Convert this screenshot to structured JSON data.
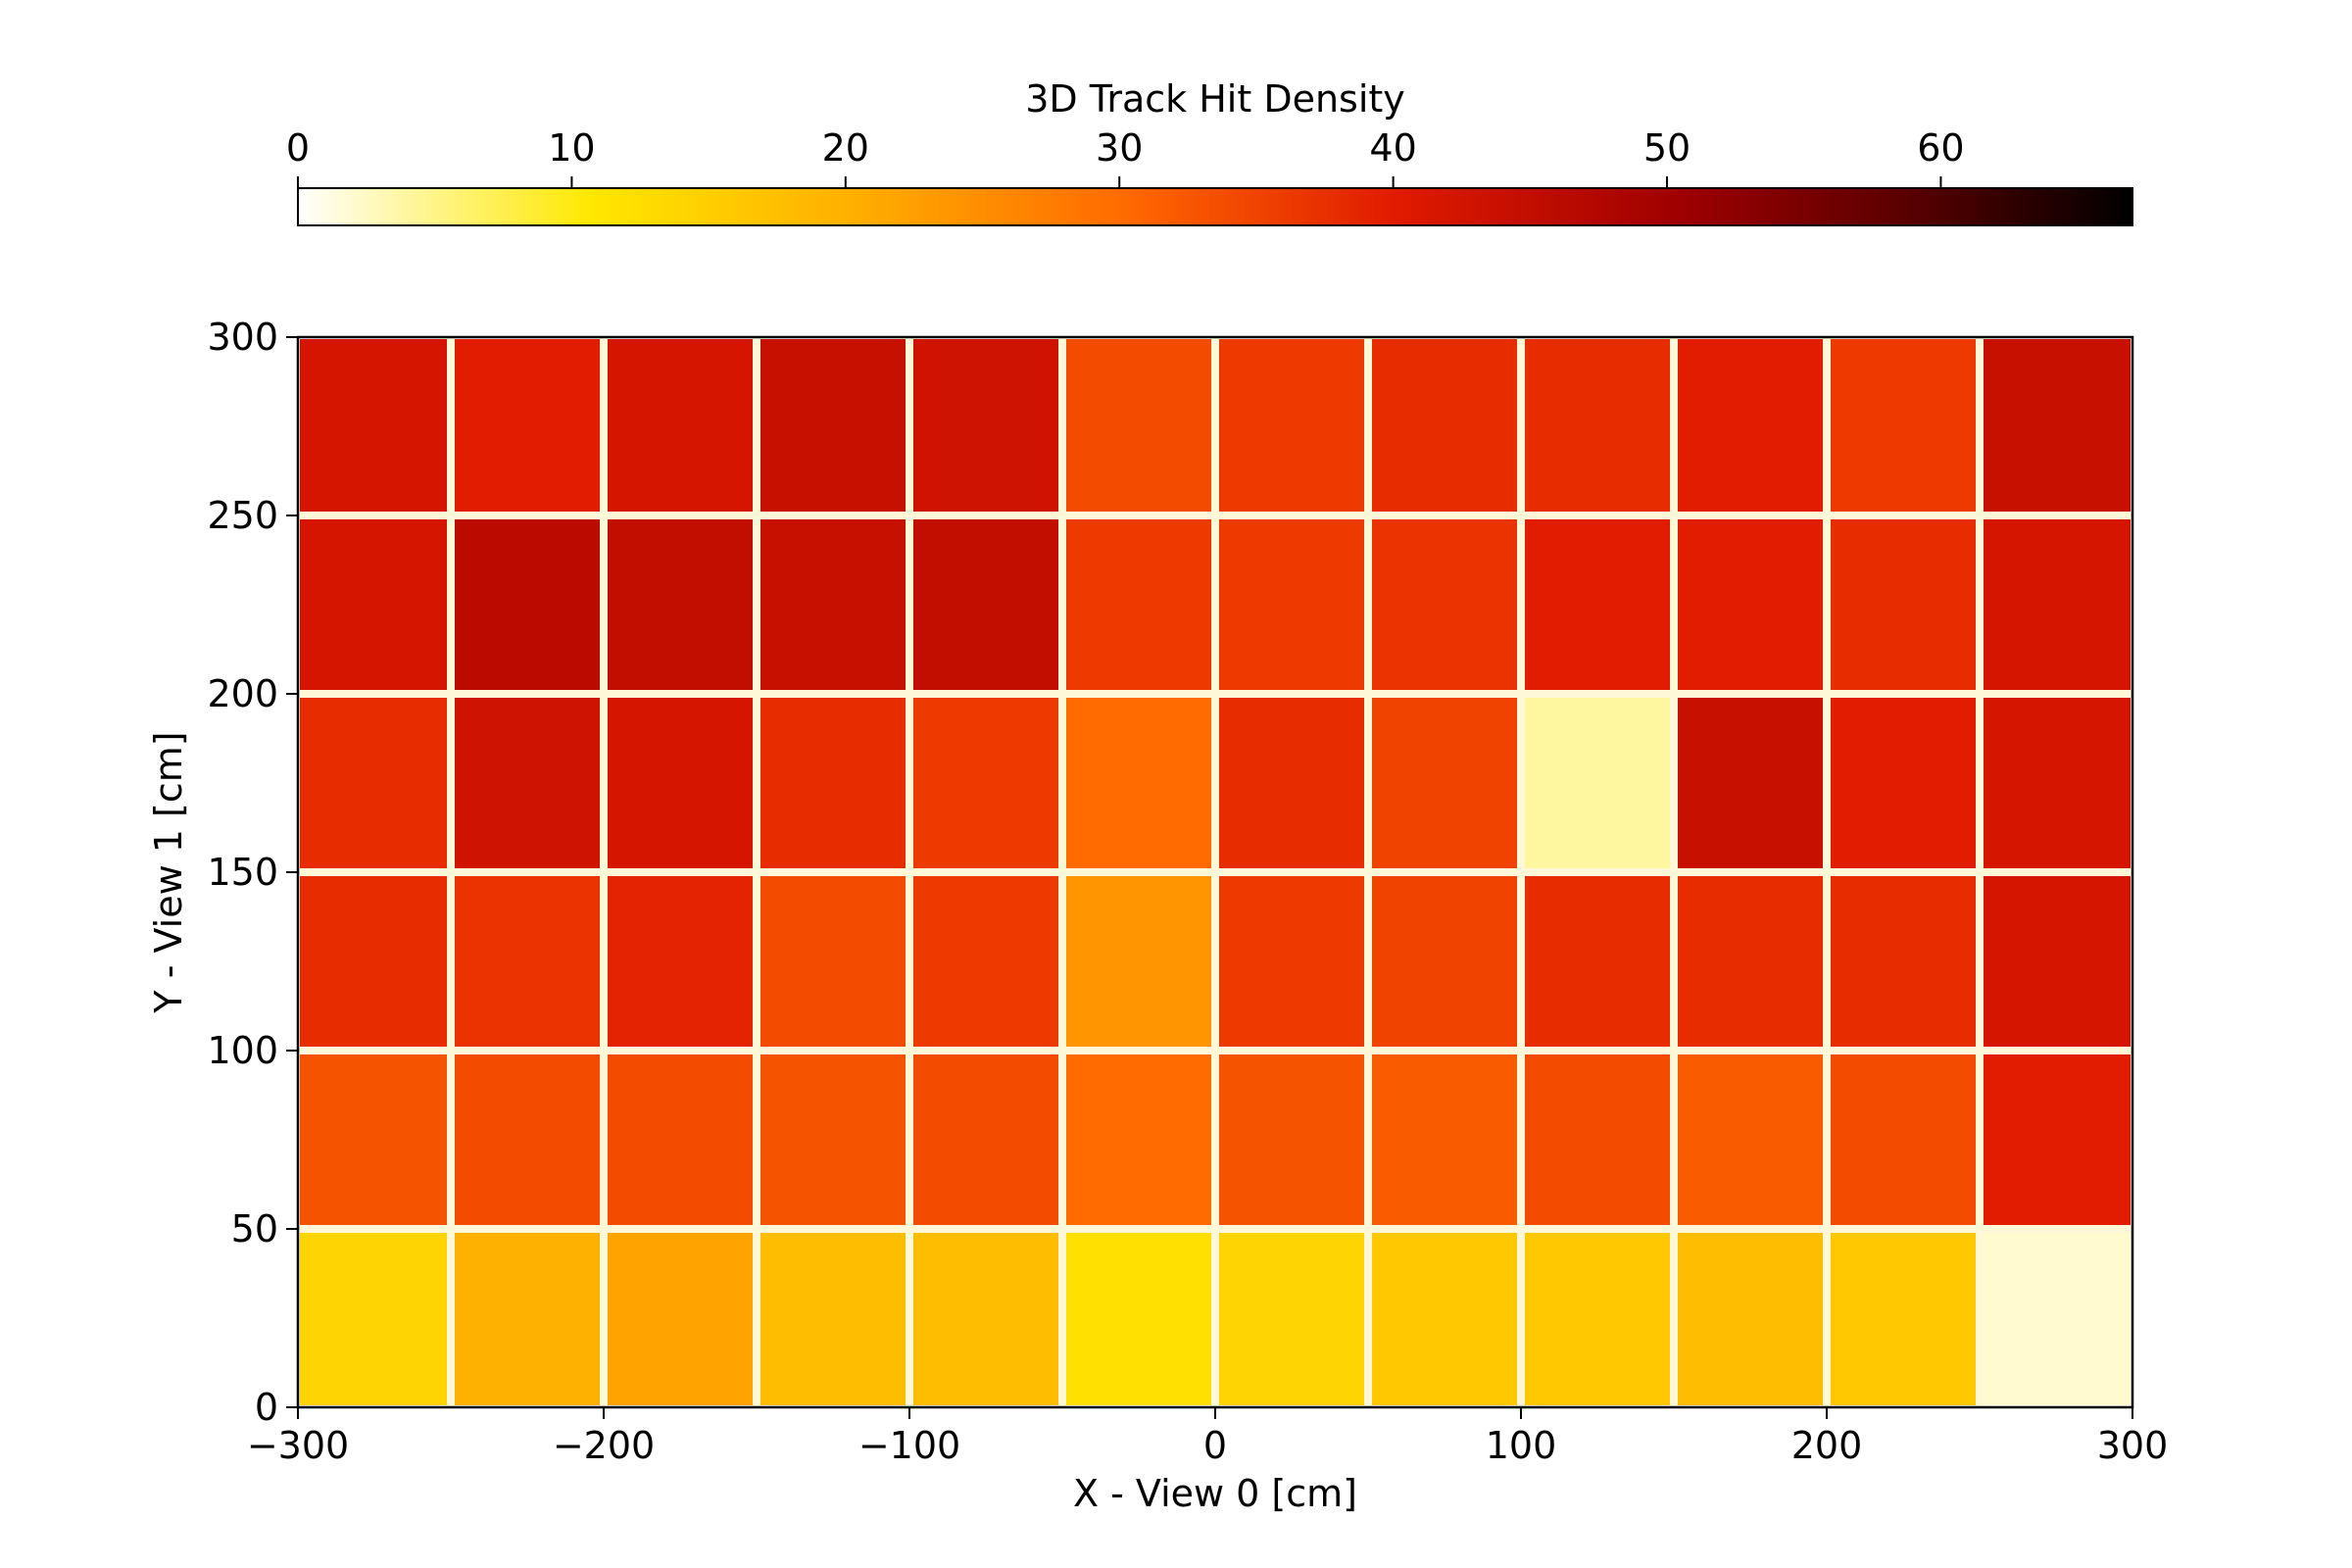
{
  "chart_data": {
    "type": "heatmap",
    "title": "",
    "xlabel": "X - View 0 [cm]",
    "ylabel": "Y - View 1 [cm]",
    "xlim": [
      -300,
      300
    ],
    "ylim": [
      0,
      300
    ],
    "x_ticks": [
      -300,
      -200,
      -100,
      0,
      100,
      200,
      300
    ],
    "x_tick_labels": [
      "−300",
      "−200",
      "−100",
      "0",
      "100",
      "200",
      "300"
    ],
    "y_ticks": [
      0,
      50,
      100,
      150,
      200,
      250,
      300
    ],
    "y_tick_labels": [
      "0",
      "50",
      "100",
      "150",
      "200",
      "250",
      "300"
    ],
    "grid": false,
    "colormap": "afmhot_r",
    "colorbar": {
      "label": "3D Track Hit Density",
      "placement": "top",
      "range": [
        0,
        67
      ],
      "ticks": [
        0,
        10,
        20,
        30,
        40,
        50,
        60
      ],
      "tick_labels": [
        "0",
        "10",
        "20",
        "30",
        "40",
        "50",
        "60"
      ]
    },
    "module_columns_x_edges": [
      -300,
      -250,
      -200,
      -150,
      -100,
      -50,
      0,
      50,
      100,
      150,
      200,
      250,
      300
    ],
    "module_rows_y_edges": [
      0,
      50,
      100,
      150,
      200,
      250,
      300
    ],
    "module_density_rows_top_to_bottom": [
      [
        42,
        40,
        42,
        44,
        43,
        34,
        36,
        38,
        38,
        40,
        36,
        44
      ],
      [
        42,
        46,
        45,
        44,
        45,
        36,
        36,
        37,
        40,
        40,
        38,
        42
      ],
      [
        38,
        43,
        42,
        38,
        36,
        30,
        38,
        35,
        4,
        44,
        40,
        42
      ],
      [
        38,
        37,
        39,
        34,
        36,
        24,
        36,
        35,
        38,
        38,
        38,
        42
      ],
      [
        33,
        34,
        34,
        33,
        34,
        30,
        33,
        32,
        34,
        32,
        34,
        40
      ],
      [
        14,
        20,
        22,
        18,
        18,
        12,
        14,
        16,
        16,
        18,
        16,
        2
      ]
    ],
    "colors": {
      "gap": "#fff8d8",
      "axis": "#000000"
    }
  }
}
